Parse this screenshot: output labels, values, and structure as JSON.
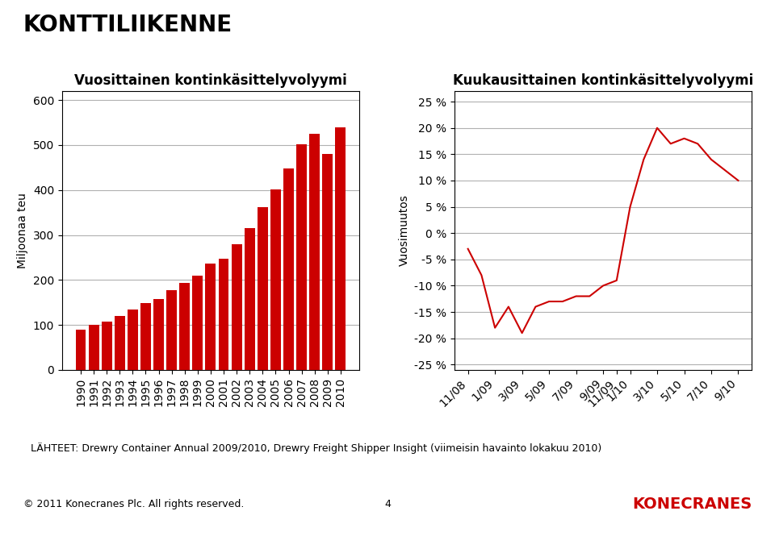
{
  "title": "KONTTILIIKENNE",
  "annotations": [
    "LÄHTEET: Drewry Container Annual 2009/2010, Drewry Freight Shipper Insight (viimeisin havainto lokakuu 2010)",
    "© 2011 Konecranes Plc. All rights reserved.",
    "4",
    "KONECRANES"
  ],
  "chart_data": [
    {
      "type": "bar",
      "title": "Vuosittainen kontinkäsittelyvolyymi",
      "ylabel": "Miljoonaa teu",
      "categories": [
        "1990",
        "1991",
        "1992",
        "1993",
        "1994",
        "1995",
        "1996",
        "1997",
        "1998",
        "1999",
        "2000",
        "2001",
        "2002",
        "2003",
        "2004",
        "2005",
        "2006",
        "2007",
        "2008",
        "2009",
        "2010"
      ],
      "values": [
        90,
        100,
        108,
        120,
        135,
        148,
        158,
        178,
        193,
        210,
        236,
        248,
        280,
        315,
        362,
        402,
        448,
        502,
        525,
        480,
        540
      ],
      "color": "#cc0000",
      "ylim": [
        0,
        620
      ],
      "yticks": [
        0,
        100,
        200,
        300,
        400,
        500,
        600
      ],
      "grid": "y"
    },
    {
      "type": "line",
      "title": "Kuukausittainen kontinkäsittelyvolyymi",
      "ylabel": "Vuosimuutos",
      "categories": [
        "11/08",
        null,
        "1/09",
        null,
        "3/09",
        null,
        "5/09",
        null,
        "7/09",
        null,
        "9/09",
        "11/09",
        "1/10",
        null,
        "3/10",
        null,
        "5/10",
        null,
        "7/10",
        null,
        "9/10"
      ],
      "values": [
        -3,
        -8,
        -18,
        -14,
        -19,
        -14,
        -13,
        -13,
        -12,
        -12,
        -10,
        -9,
        5,
        14,
        20,
        17,
        18,
        17,
        14,
        12,
        10
      ],
      "color": "#cc0000",
      "ylim": [
        -26,
        27
      ],
      "yticks": [
        {
          "value": -25,
          "label": "-25 %"
        },
        {
          "value": -20,
          "label": "-20 %"
        },
        {
          "value": -15,
          "label": "-15 %"
        },
        {
          "value": -10,
          "label": "-10 %"
        },
        {
          "value": -5,
          "label": "-5 %"
        },
        {
          "value": 0,
          "label": "0 %"
        },
        {
          "value": 5,
          "label": "5 %"
        },
        {
          "value": 10,
          "label": "10 %"
        },
        {
          "value": 15,
          "label": "15 %"
        },
        {
          "value": 20,
          "label": "20 %"
        },
        {
          "value": 25,
          "label": "25 %"
        }
      ],
      "grid": "y"
    }
  ]
}
